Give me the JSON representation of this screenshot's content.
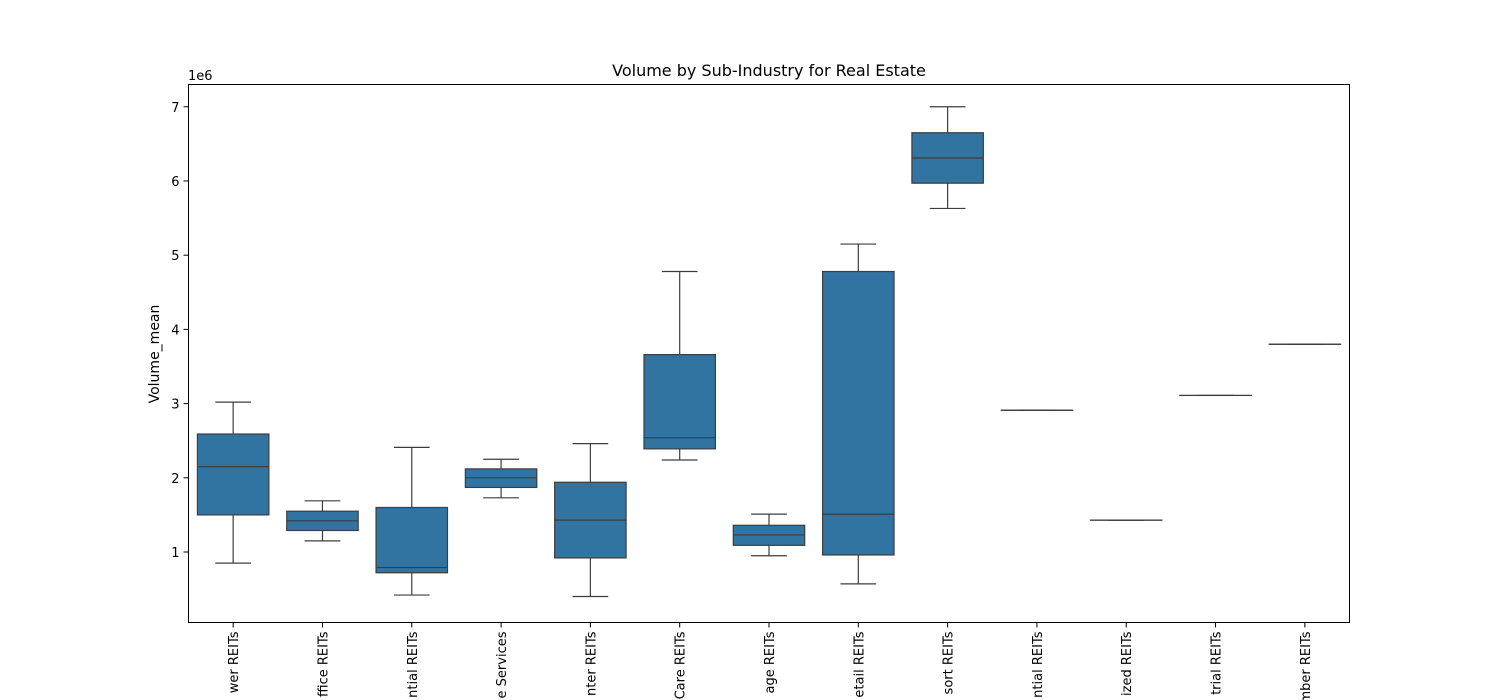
{
  "chart_data": {
    "type": "box",
    "title": "Volume by Sub-Industry for Real Estate",
    "ylabel": "Volume_mean",
    "xlabel": "",
    "y_offset_label": "1e6",
    "ylim": [
      0.05,
      7.3
    ],
    "y_ticks": [
      1,
      2,
      3,
      4,
      5,
      6,
      7
    ],
    "box_color": "#3274a1",
    "line_color": "#3d3d3d",
    "categories": [
      "Tower REITs",
      "Office REITs",
      "Residential REITs",
      "Real Estate Services",
      "Data Center REITs",
      "Health Care REITs",
      "Self Storage REITs",
      "Retail REITs",
      "Hotel & Resort REITs",
      "Multi-Family Residential REITs",
      "Specialized REITs",
      "Industrial REITs",
      "Timber REITs"
    ],
    "tick_labels_visible": [
      "wer REITs",
      "ffice REITs",
      "ntial REITs",
      "e Services",
      "nter REITs",
      "Care REITs",
      "age REITs",
      "etail REITs",
      "sort REITs",
      "ntial REITs",
      "ized REITs",
      "trial REITs",
      "mber REITs"
    ],
    "boxes": [
      {
        "whislo": 0.85,
        "q1": 1.5,
        "med": 2.15,
        "q3": 2.59,
        "whishi": 3.02
      },
      {
        "whislo": 1.15,
        "q1": 1.29,
        "med": 1.42,
        "q3": 1.55,
        "whishi": 1.69
      },
      {
        "whislo": 0.42,
        "q1": 0.72,
        "med": 0.79,
        "q3": 1.6,
        "whishi": 2.41
      },
      {
        "whislo": 1.73,
        "q1": 1.87,
        "med": 2.0,
        "q3": 2.12,
        "whishi": 2.25
      },
      {
        "whislo": 0.4,
        "q1": 0.92,
        "med": 1.43,
        "q3": 1.94,
        "whishi": 2.46
      },
      {
        "whislo": 2.24,
        "q1": 2.39,
        "med": 2.54,
        "q3": 3.66,
        "whishi": 4.78
      },
      {
        "whislo": 0.95,
        "q1": 1.09,
        "med": 1.23,
        "q3": 1.36,
        "whishi": 1.51
      },
      {
        "whislo": 0.57,
        "q1": 0.96,
        "med": 1.51,
        "q3": 4.78,
        "whishi": 5.15
      },
      {
        "whislo": 5.63,
        "q1": 5.97,
        "med": 6.31,
        "q3": 6.65,
        "whishi": 7.0
      },
      {
        "whislo": 2.91,
        "q1": 2.91,
        "med": 2.91,
        "q3": 2.91,
        "whishi": 2.91
      },
      {
        "whislo": 1.43,
        "q1": 1.43,
        "med": 1.43,
        "q3": 1.43,
        "whishi": 1.43
      },
      {
        "whislo": 3.11,
        "q1": 3.11,
        "med": 3.11,
        "q3": 3.11,
        "whishi": 3.11
      },
      {
        "whislo": 3.8,
        "q1": 3.8,
        "med": 3.8,
        "q3": 3.8,
        "whishi": 3.8
      }
    ],
    "grid": false,
    "legend": "none"
  }
}
